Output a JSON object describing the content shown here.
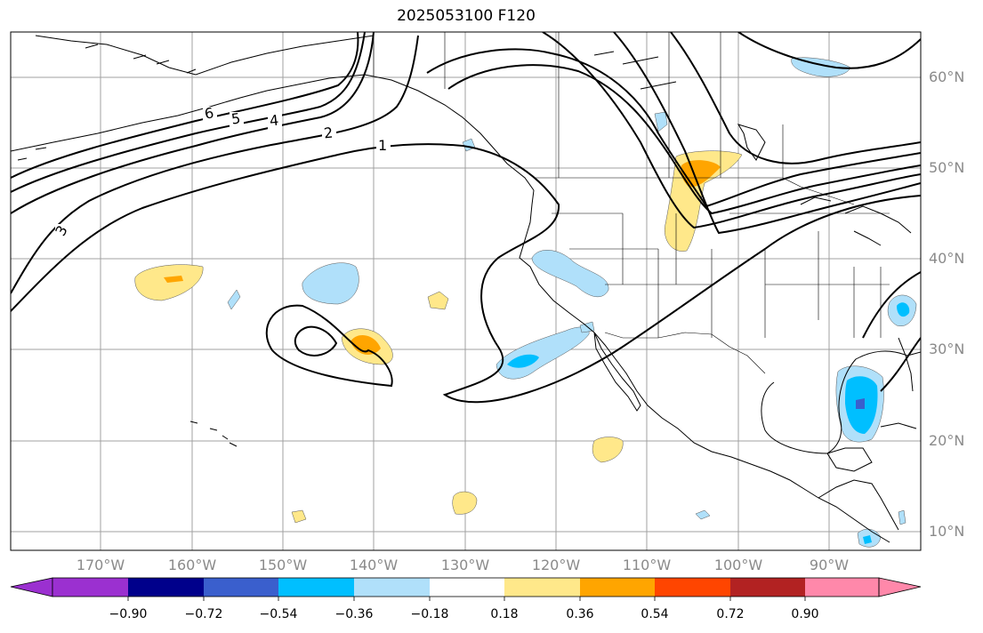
{
  "title": "2025053100 F120",
  "lat_labels": [
    "60°N",
    "50°N",
    "40°N",
    "30°N",
    "20°N",
    "10°N"
  ],
  "lon_labels": [
    "170°W",
    "160°W",
    "150°W",
    "140°W",
    "130°W",
    "120°W",
    "110°W",
    "100°W",
    "90°W"
  ],
  "contour_labels": [
    "6",
    "5",
    "4",
    "2",
    "1",
    "3"
  ],
  "colorbar": {
    "ticks": [
      "−0.90",
      "−0.72",
      "−0.54",
      "−0.36",
      "−0.18",
      "0.18",
      "0.36",
      "0.54",
      "0.72",
      "0.90"
    ],
    "colors": [
      "#9b30d0",
      "#00008b",
      "#3a5fcd",
      "#00bfff",
      "#b0e0fa",
      "#ffffff",
      "#ffe88a",
      "#ffa500",
      "#ff4500",
      "#b22222",
      "#ff88aa"
    ]
  }
}
